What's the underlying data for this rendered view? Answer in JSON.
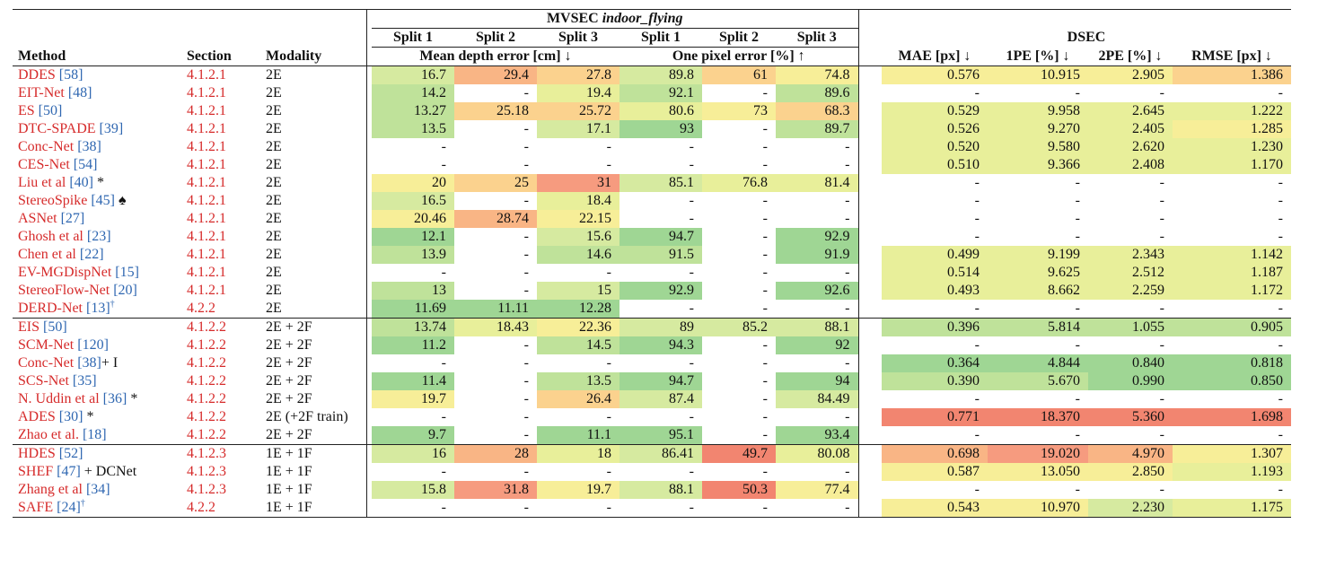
{
  "headers": {
    "method": "Method",
    "section": "Section",
    "modality": "Modality",
    "mvsec_prefix": "MVSEC ",
    "mvsec_italic": "indoor_flying",
    "dsec": "DSEC",
    "splits": [
      "Split 1",
      "Split 2",
      "Split 3",
      "Split 1",
      "Split 2",
      "Split 3"
    ],
    "mean_depth": "Mean depth error [cm] ↓",
    "one_pixel": "One pixel error [%] ↑",
    "dsec_cols": [
      "MAE [px] ↓",
      "1PE [%] ↓",
      "2PE [%] ↓",
      "RMSE [px] ↓"
    ]
  },
  "colors": {
    "dark_green": "#9fd694",
    "green": "#bfe29a",
    "light_green": "#d6eaa0",
    "yellow_green": "#e8ef9a",
    "yellow": "#f7ee98",
    "light_orange": "#fbd28e",
    "orange": "#f9b585",
    "red_orange": "#f69b7f",
    "red": "#f28570"
  },
  "groups": [
    {
      "rows": [
        {
          "name": "DDES",
          "ref": "[58]",
          "extra": "",
          "section": "4.1.2.1",
          "modality": "2E",
          "vals": [
            "16.7",
            "29.4",
            "27.8",
            "89.8",
            "61",
            "74.8",
            "0.576",
            "10.915",
            "2.905",
            "1.386"
          ],
          "c": [
            "light_green",
            "orange",
            "light_orange",
            "light_green",
            "light_orange",
            "yellow",
            "yellow",
            "yellow",
            "yellow",
            "light_orange"
          ]
        },
        {
          "name": "EIT-Net",
          "ref": "[48]",
          "extra": "",
          "section": "4.1.2.1",
          "modality": "2E",
          "vals": [
            "14.2",
            "-",
            "19.4",
            "92.1",
            "-",
            "89.6",
            "-",
            "-",
            "-",
            "-"
          ],
          "c": [
            "green",
            "",
            "yellow_green",
            "green",
            "",
            "green",
            "",
            "",
            "",
            ""
          ]
        },
        {
          "name": "ES",
          "ref": "[50]",
          "extra": "",
          "section": "4.1.2.1",
          "modality": "2E",
          "vals": [
            "13.27",
            "25.18",
            "25.72",
            "80.6",
            "73",
            "68.3",
            "0.529",
            "9.958",
            "2.645",
            "1.222"
          ],
          "c": [
            "green",
            "light_orange",
            "light_orange",
            "yellow_green",
            "yellow",
            "light_orange",
            "yellow_green",
            "yellow_green",
            "yellow_green",
            "yellow_green"
          ]
        },
        {
          "name": "DTC-SPADE",
          "ref": "[39]",
          "extra": "",
          "section": "4.1.2.1",
          "modality": "2E",
          "vals": [
            "13.5",
            "-",
            "17.1",
            "93",
            "-",
            "89.7",
            "0.526",
            "9.270",
            "2.405",
            "1.285"
          ],
          "c": [
            "green",
            "",
            "light_green",
            "dark_green",
            "",
            "green",
            "yellow_green",
            "yellow_green",
            "yellow_green",
            "yellow"
          ]
        },
        {
          "name": "Conc-Net",
          "ref": "[38]",
          "extra": "",
          "section": "4.1.2.1",
          "modality": "2E",
          "vals": [
            "-",
            "-",
            "-",
            "-",
            "-",
            "-",
            "0.520",
            "9.580",
            "2.620",
            "1.230"
          ],
          "c": [
            "",
            "",
            "",
            "",
            "",
            "",
            "yellow_green",
            "yellow_green",
            "yellow_green",
            "yellow_green"
          ]
        },
        {
          "name": "CES-Net",
          "ref": "[54]",
          "extra": "",
          "section": "4.1.2.1",
          "modality": "2E",
          "vals": [
            "-",
            "-",
            "-",
            "-",
            "-",
            "-",
            "0.510",
            "9.366",
            "2.408",
            "1.170"
          ],
          "c": [
            "",
            "",
            "",
            "",
            "",
            "",
            "yellow_green",
            "yellow_green",
            "yellow_green",
            "yellow_green"
          ]
        },
        {
          "name": "Liu et al",
          "ref": "[40]",
          "extra": " *",
          "section": "4.1.2.1",
          "modality": "2E",
          "vals": [
            "20",
            "25",
            "31",
            "85.1",
            "76.8",
            "81.4",
            "-",
            "-",
            "-",
            "-"
          ],
          "c": [
            "yellow",
            "light_orange",
            "red_orange",
            "light_green",
            "yellow_green",
            "yellow_green",
            "",
            "",
            "",
            ""
          ]
        },
        {
          "name": "StereoSpike",
          "ref": "[45]",
          "extra": " ♠",
          "section": "4.1.2.1",
          "modality": "2E",
          "vals": [
            "16.5",
            "-",
            "18.4",
            "-",
            "-",
            "-",
            "-",
            "-",
            "-",
            "-"
          ],
          "c": [
            "light_green",
            "",
            "yellow_green",
            "",
            "",
            "",
            "",
            "",
            "",
            ""
          ]
        },
        {
          "name": "ASNet",
          "ref": "[27]",
          "extra": "",
          "section": "4.1.2.1",
          "modality": "2E",
          "vals": [
            "20.46",
            "28.74",
            "22.15",
            "-",
            "-",
            "-",
            "-",
            "-",
            "-",
            "-"
          ],
          "c": [
            "yellow",
            "orange",
            "yellow",
            "",
            "",
            "",
            "",
            "",
            "",
            ""
          ]
        },
        {
          "name": "Ghosh et al",
          "ref": "[23]",
          "extra": "",
          "section": "4.1.2.1",
          "modality": "2E",
          "vals": [
            "12.1",
            "-",
            "15.6",
            "94.7",
            "-",
            "92.9",
            "-",
            "-",
            "-",
            "-"
          ],
          "c": [
            "dark_green",
            "",
            "light_green",
            "dark_green",
            "",
            "dark_green",
            "",
            "",
            "",
            ""
          ]
        },
        {
          "name": "Chen et al",
          "ref": "[22]",
          "extra": "",
          "section": "4.1.2.1",
          "modality": "2E",
          "vals": [
            "13.9",
            "-",
            "14.6",
            "91.5",
            "-",
            "91.9",
            "0.499",
            "9.199",
            "2.343",
            "1.142"
          ],
          "c": [
            "green",
            "",
            "green",
            "green",
            "",
            "dark_green",
            "yellow_green",
            "yellow_green",
            "yellow_green",
            "yellow_green"
          ]
        },
        {
          "name": "EV-MGDispNet",
          "ref": "[15]",
          "extra": "",
          "section": "4.1.2.1",
          "modality": "2E",
          "vals": [
            "-",
            "-",
            "-",
            "-",
            "-",
            "-",
            "0.514",
            "9.625",
            "2.512",
            "1.187"
          ],
          "c": [
            "",
            "",
            "",
            "",
            "",
            "",
            "yellow_green",
            "yellow_green",
            "yellow_green",
            "yellow_green"
          ]
        },
        {
          "name": "StereoFlow-Net",
          "ref": "[20]",
          "extra": "",
          "section": "4.1.2.1",
          "modality": "2E",
          "vals": [
            "13",
            "-",
            "15",
            "92.9",
            "-",
            "92.6",
            "0.493",
            "8.662",
            "2.259",
            "1.172"
          ],
          "c": [
            "green",
            "",
            "light_green",
            "dark_green",
            "",
            "dark_green",
            "yellow_green",
            "yellow_green",
            "yellow_green",
            "yellow_green"
          ]
        },
        {
          "name": "DERD-Net",
          "ref": "[13]",
          "extra": "†",
          "section": "4.2.2",
          "modality": "2E",
          "vals": [
            "11.69",
            "11.11",
            "12.28",
            "-",
            "-",
            "-",
            "-",
            "-",
            "-",
            "-"
          ],
          "c": [
            "dark_green",
            "dark_green",
            "dark_green",
            "",
            "",
            "",
            "",
            "",
            "",
            ""
          ]
        }
      ]
    },
    {
      "rows": [
        {
          "name": "EIS",
          "ref": "[50]",
          "extra": "",
          "section": "4.1.2.2",
          "modality": "2E + 2F",
          "vals": [
            "13.74",
            "18.43",
            "22.36",
            "89",
            "85.2",
            "88.1",
            "0.396",
            "5.814",
            "1.055",
            "0.905"
          ],
          "c": [
            "green",
            "yellow_green",
            "yellow",
            "light_green",
            "light_green",
            "light_green",
            "green",
            "green",
            "green",
            "green"
          ]
        },
        {
          "name": "SCM-Net",
          "ref": "[120]",
          "extra": "",
          "section": "4.1.2.2",
          "modality": "2E + 2F",
          "vals": [
            "11.2",
            "-",
            "14.5",
            "94.3",
            "-",
            "92",
            "-",
            "-",
            "-",
            "-"
          ],
          "c": [
            "dark_green",
            "",
            "green",
            "dark_green",
            "",
            "dark_green",
            "",
            "",
            "",
            ""
          ]
        },
        {
          "name": "Conc-Net",
          "ref": "[38]",
          "extra": "+ I",
          "section": "4.1.2.2",
          "modality": "2E + 2F",
          "vals": [
            "-",
            "-",
            "-",
            "-",
            "-",
            "-",
            "0.364",
            "4.844",
            "0.840",
            "0.818"
          ],
          "c": [
            "",
            "",
            "",
            "",
            "",
            "",
            "dark_green",
            "dark_green",
            "dark_green",
            "dark_green"
          ]
        },
        {
          "name": "SCS-Net",
          "ref": "[35]",
          "extra": "",
          "section": "4.1.2.2",
          "modality": "2E + 2F",
          "vals": [
            "11.4",
            "-",
            "13.5",
            "94.7",
            "-",
            "94",
            "0.390",
            "5.670",
            "0.990",
            "0.850"
          ],
          "c": [
            "dark_green",
            "",
            "green",
            "dark_green",
            "",
            "dark_green",
            "green",
            "green",
            "dark_green",
            "dark_green"
          ]
        },
        {
          "name": "N. Uddin et al",
          "ref": "[36]",
          "extra": " *",
          "section": "4.1.2.2",
          "modality": "2E + 2F",
          "vals": [
            "19.7",
            "-",
            "26.4",
            "87.4",
            "-",
            "84.49",
            "-",
            "-",
            "-",
            "-"
          ],
          "c": [
            "yellow",
            "",
            "light_orange",
            "light_green",
            "",
            "light_green",
            "",
            "",
            "",
            ""
          ]
        },
        {
          "name": "ADES",
          "ref": "[30]",
          "extra": " *",
          "section": "4.1.2.2",
          "modality": "2E (+2F train)",
          "vals": [
            "-",
            "-",
            "-",
            "-",
            "-",
            "-",
            "0.771",
            "18.370",
            "5.360",
            "1.698"
          ],
          "c": [
            "",
            "",
            "",
            "",
            "",
            "",
            "red",
            "red",
            "red",
            "red"
          ]
        },
        {
          "name": "Zhao et al.",
          "ref": "[18]",
          "extra": "",
          "section": "4.1.2.2",
          "modality": "2E + 2F",
          "vals": [
            "9.7",
            "-",
            "11.1",
            "95.1",
            "-",
            "93.4",
            "-",
            "-",
            "-",
            "-"
          ],
          "c": [
            "dark_green",
            "",
            "dark_green",
            "dark_green",
            "",
            "dark_green",
            "",
            "",
            "",
            ""
          ]
        }
      ]
    },
    {
      "rows": [
        {
          "name": "HDES",
          "ref": "[52]",
          "extra": "",
          "section": "4.1.2.3",
          "modality": "1E + 1F",
          "vals": [
            "16",
            "28",
            "18",
            "86.41",
            "49.7",
            "80.08",
            "0.698",
            "19.020",
            "4.970",
            "1.307"
          ],
          "c": [
            "light_green",
            "orange",
            "yellow_green",
            "light_green",
            "red",
            "yellow_green",
            "orange",
            "red_orange",
            "orange",
            "yellow"
          ]
        },
        {
          "name": "SHEF",
          "ref": "[47]",
          "extra": " + DCNet",
          "section": "4.1.2.3",
          "modality": "1E + 1F",
          "vals": [
            "-",
            "-",
            "-",
            "-",
            "-",
            "-",
            "0.587",
            "13.050",
            "2.850",
            "1.193"
          ],
          "c": [
            "",
            "",
            "",
            "",
            "",
            "",
            "yellow",
            "yellow",
            "yellow",
            "yellow_green"
          ]
        },
        {
          "name": "Zhang et al",
          "ref": "[34]",
          "extra": "",
          "section": "4.1.2.3",
          "modality": "1E + 1F",
          "vals": [
            "15.8",
            "31.8",
            "19.7",
            "88.1",
            "50.3",
            "77.4",
            "-",
            "-",
            "-",
            "-"
          ],
          "c": [
            "light_green",
            "red_orange",
            "yellow",
            "light_green",
            "red",
            "yellow",
            "",
            "",
            "",
            ""
          ]
        },
        {
          "name": "SAFE",
          "ref": "[24]",
          "extra": "†",
          "section": "4.2.2",
          "modality": "1E + 1F",
          "vals": [
            "-",
            "-",
            "-",
            "-",
            "-",
            "-",
            "0.543",
            "10.970",
            "2.230",
            "1.175"
          ],
          "c": [
            "",
            "",
            "",
            "",
            "",
            "",
            "yellow",
            "yellow",
            "light_green",
            "yellow_green"
          ]
        }
      ]
    }
  ]
}
